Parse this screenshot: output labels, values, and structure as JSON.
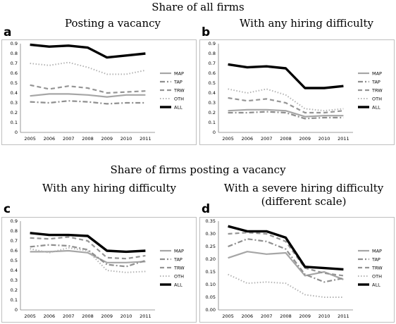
{
  "headings": {
    "top": "Share of all firms",
    "middle": "Share of firms posting a vacancy"
  },
  "panels": [
    {
      "letter": "a",
      "subtitle": [
        "Posting a vacancy"
      ]
    },
    {
      "letter": "b",
      "subtitle": [
        "With any hiring difficulty"
      ]
    },
    {
      "letter": "c",
      "subtitle": [
        "With any hiring difficulty"
      ]
    },
    {
      "letter": "d",
      "subtitle": [
        "With a severe hiring difficulty",
        "(different scale)"
      ]
    }
  ],
  "style": {
    "series": {
      "MAP": {
        "color": "#a6a6a6",
        "dash": "",
        "width": 2.2
      },
      "TAP": {
        "color": "#8f8f8f",
        "dash": "7 3 2 3",
        "width": 2.2
      },
      "TRW": {
        "color": "#959595",
        "dash": "6 4",
        "width": 2.2
      },
      "OTH": {
        "color": "#b3b3b3",
        "dash": "1.5 2.5",
        "width": 2
      },
      "ALL": {
        "color": "#000000",
        "dash": "",
        "width": 3.4
      }
    },
    "frame": "#bfbfbf",
    "axis": "#7f7f7f"
  },
  "chart_data": [
    {
      "id": "a",
      "type": "line",
      "x": [
        "2005",
        "2006",
        "2007",
        "2008",
        "2009",
        "2010",
        "2011"
      ],
      "ylim": [
        0,
        0.9
      ],
      "yticks": [
        "0",
        "0.1",
        "0.2",
        "0.3",
        "0.4",
        "0.5",
        "0.6",
        "0.7",
        "0.8",
        "0.9"
      ],
      "legend": "right",
      "series": [
        {
          "name": "MAP",
          "values": [
            0.37,
            0.39,
            0.39,
            0.38,
            0.36,
            0.38,
            0.38
          ]
        },
        {
          "name": "TAP",
          "values": [
            0.31,
            0.3,
            0.32,
            0.31,
            0.29,
            0.3,
            0.3
          ]
        },
        {
          "name": "TRW",
          "values": [
            0.48,
            0.44,
            0.47,
            0.45,
            0.4,
            0.41,
            0.42
          ]
        },
        {
          "name": "OTH",
          "values": [
            0.7,
            0.68,
            0.71,
            0.66,
            0.59,
            0.59,
            0.63
          ]
        },
        {
          "name": "ALL",
          "values": [
            0.89,
            0.87,
            0.88,
            0.86,
            0.76,
            0.78,
            0.8
          ]
        }
      ]
    },
    {
      "id": "b",
      "type": "line",
      "x": [
        "2005",
        "2006",
        "2007",
        "2008",
        "2009",
        "2010",
        "2011"
      ],
      "ylim": [
        0,
        0.9
      ],
      "yticks": [
        "0",
        "0.1",
        "0.2",
        "0.3",
        "0.4",
        "0.5",
        "0.6",
        "0.7",
        "0.8",
        "0.9"
      ],
      "legend": "right",
      "series": [
        {
          "name": "MAP",
          "values": [
            0.22,
            0.23,
            0.23,
            0.22,
            0.16,
            0.17,
            0.17
          ]
        },
        {
          "name": "TAP",
          "values": [
            0.2,
            0.2,
            0.21,
            0.2,
            0.14,
            0.15,
            0.15
          ]
        },
        {
          "name": "TRW",
          "values": [
            0.35,
            0.32,
            0.34,
            0.3,
            0.2,
            0.2,
            0.22
          ]
        },
        {
          "name": "OTH",
          "values": [
            0.44,
            0.4,
            0.44,
            0.38,
            0.24,
            0.22,
            0.24
          ]
        },
        {
          "name": "ALL",
          "values": [
            0.69,
            0.66,
            0.67,
            0.65,
            0.45,
            0.45,
            0.47
          ]
        }
      ]
    },
    {
      "id": "c",
      "type": "line",
      "x": [
        "2005",
        "2006",
        "2007",
        "2008",
        "2009",
        "2010",
        "2011"
      ],
      "ylim": [
        0,
        0.9
      ],
      "yticks": [
        "0",
        "0.1",
        "0.2",
        "0.3",
        "0.4",
        "0.5",
        "0.6",
        "0.7",
        "0.8",
        "0.9"
      ],
      "legend": "right",
      "series": [
        {
          "name": "MAP",
          "values": [
            0.59,
            0.59,
            0.6,
            0.58,
            0.48,
            0.48,
            0.49
          ]
        },
        {
          "name": "TAP",
          "values": [
            0.64,
            0.66,
            0.65,
            0.61,
            0.46,
            0.44,
            0.5
          ]
        },
        {
          "name": "TRW",
          "values": [
            0.73,
            0.72,
            0.74,
            0.7,
            0.53,
            0.52,
            0.55
          ]
        },
        {
          "name": "OTH",
          "values": [
            0.62,
            0.58,
            0.63,
            0.6,
            0.4,
            0.38,
            0.39
          ]
        },
        {
          "name": "ALL",
          "values": [
            0.78,
            0.76,
            0.76,
            0.75,
            0.6,
            0.59,
            0.6
          ]
        }
      ]
    },
    {
      "id": "d",
      "type": "line",
      "x": [
        "2005",
        "2006",
        "2007",
        "2008",
        "2009",
        "2010",
        "2011"
      ],
      "ylim": [
        0,
        0.35
      ],
      "yticks": [
        "0.00",
        "0.05",
        "0.10",
        "0.15",
        "0.20",
        "0.25",
        "0.30",
        "0.35"
      ],
      "legend": "right",
      "series": [
        {
          "name": "MAP",
          "values": [
            0.205,
            0.23,
            0.22,
            0.225,
            0.135,
            0.15,
            0.12
          ]
        },
        {
          "name": "TAP",
          "values": [
            0.25,
            0.28,
            0.27,
            0.24,
            0.14,
            0.11,
            0.125
          ]
        },
        {
          "name": "TRW",
          "values": [
            0.3,
            0.305,
            0.3,
            0.27,
            0.165,
            0.145,
            0.135
          ]
        },
        {
          "name": "OTH",
          "values": [
            0.14,
            0.105,
            0.11,
            0.105,
            0.06,
            0.05,
            0.05
          ]
        },
        {
          "name": "ALL",
          "values": [
            0.33,
            0.31,
            0.31,
            0.285,
            0.17,
            0.165,
            0.16
          ]
        }
      ]
    }
  ]
}
